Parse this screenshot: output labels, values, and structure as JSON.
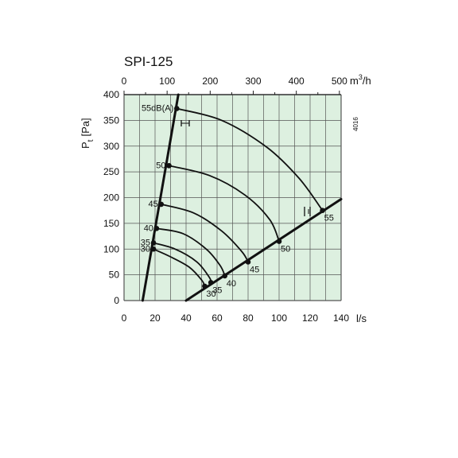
{
  "chart_data": {
    "type": "line",
    "title": "SPI-125",
    "ylabel": "Pt [Pa]",
    "ylabel_main": "P",
    "ylabel_sub": "t",
    "ylabel_unit": "[Pa]",
    "xlabel": "l/s",
    "x2label": "m3/h",
    "x2label_base": "m",
    "x2label_sup": "3",
    "x2label_rest": "/h",
    "chart_code": "4016",
    "xlim": [
      0,
      140
    ],
    "ylim": [
      0,
      400
    ],
    "x2lim": [
      0,
      504
    ],
    "x_ticks": [
      "0",
      "20",
      "40",
      "60",
      "80",
      "100",
      "120",
      "140"
    ],
    "x2_ticks": [
      "0",
      "100",
      "200",
      "300",
      "400",
      "500"
    ],
    "y_ticks": [
      "0",
      "50",
      "100",
      "150",
      "200",
      "250",
      "300",
      "350",
      "400"
    ],
    "grid": true,
    "background_color": "#ddf0e0",
    "line_color": "#111111",
    "boundary_lines": [
      {
        "role": "low-flow",
        "points": [
          [
            12,
            0
          ],
          [
            35,
            400
          ]
        ]
      },
      {
        "role": "high-flow",
        "points": [
          [
            40,
            0
          ],
          [
            140,
            197
          ]
        ]
      }
    ],
    "series": [
      {
        "name": "30",
        "label": "30",
        "points": [
          [
            19,
            100
          ],
          [
            30,
            85
          ],
          [
            42,
            65
          ],
          [
            50,
            40
          ],
          [
            52,
            28
          ]
        ]
      },
      {
        "name": "35",
        "label": "35",
        "points": [
          [
            19,
            112
          ],
          [
            33,
            100
          ],
          [
            47,
            75
          ],
          [
            55,
            45
          ],
          [
            56,
            35
          ]
        ]
      },
      {
        "name": "40",
        "label": "40",
        "points": [
          [
            21,
            140
          ],
          [
            38,
            130
          ],
          [
            53,
            100
          ],
          [
            62,
            68
          ],
          [
            65,
            48
          ]
        ]
      },
      {
        "name": "45",
        "label": "45",
        "points": [
          [
            24,
            187
          ],
          [
            45,
            170
          ],
          [
            63,
            135
          ],
          [
            76,
            95
          ],
          [
            80,
            75
          ]
        ]
      },
      {
        "name": "50",
        "label": "50",
        "points": [
          [
            29,
            262
          ],
          [
            55,
            243
          ],
          [
            78,
            205
          ],
          [
            94,
            157
          ],
          [
            100,
            115
          ]
        ]
      },
      {
        "name": "55",
        "label": "55dB(A)",
        "points": [
          [
            34,
            373
          ],
          [
            63,
            350
          ],
          [
            92,
            298
          ],
          [
            113,
            237
          ],
          [
            128,
            175
          ]
        ]
      }
    ],
    "annotations": [
      "55dB(A)",
      "50",
      "45",
      "40",
      "35",
      "30",
      "55",
      "50",
      "45",
      "40",
      "35",
      "30"
    ]
  }
}
